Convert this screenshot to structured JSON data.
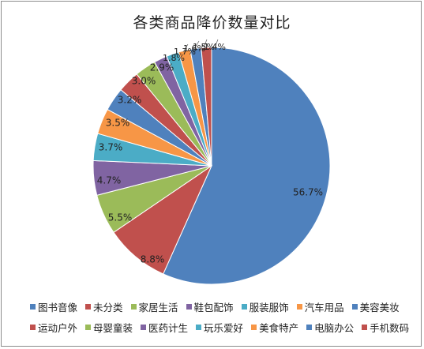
{
  "chart_data": {
    "type": "pie",
    "title": "各类商品降价数量对比",
    "legend_position": "bottom",
    "categories": [
      "图书音像",
      "未分类",
      "家居生活",
      "鞋包配饰",
      "服装服饰",
      "汽车用品",
      "美容美妆",
      "运动户外",
      "母婴童装",
      "医药计生",
      "玩乐爱好",
      "美食特产",
      "电脑办公",
      "手机数码"
    ],
    "values": [
      56.7,
      8.8,
      5.5,
      4.7,
      3.7,
      3.5,
      3.2,
      3.0,
      2.9,
      1.8,
      1.7,
      1.6,
      1.5,
      1.4
    ],
    "labels": [
      "56.7%",
      "8.8%",
      "5.5%",
      "4.7%",
      "3.7%",
      "3.5%",
      "3.2%",
      "3.0%",
      "2.9%",
      "1.8%",
      "1.7%",
      "1.6%",
      "1.5%",
      "1.4%"
    ],
    "colors": [
      "#4f81bd",
      "#c0504d",
      "#9bbb59",
      "#8064a2",
      "#4bacc6",
      "#f79646",
      "#4f81bd",
      "#c0504d",
      "#9bbb59",
      "#8064a2",
      "#4bacc6",
      "#f79646",
      "#4f81bd",
      "#c0504d"
    ]
  }
}
